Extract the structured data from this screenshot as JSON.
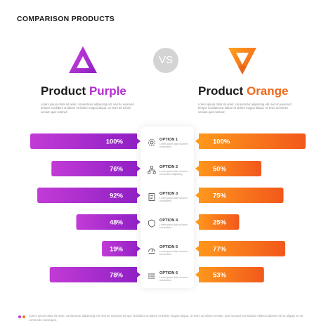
{
  "page_title": "COMPARISON PRODUCTS",
  "vs_label": "VS",
  "products": {
    "left": {
      "name": "Product",
      "accent": "Purple",
      "color_start": "#c23bd6",
      "color_end": "#8e1fc4",
      "description": "Lorem ipsum dolor sit amet, consectetur adipiscing elit, sed do eiusmod tempor incididunt ut labore et dolore magna aliqua. Ut enim ad minim veniam quis nostrud"
    },
    "right": {
      "name": "Product",
      "accent": "Orange",
      "color_start": "#ff9a1c",
      "color_end": "#f2581c",
      "description": "Lorem ipsum dolor sit amet, consectetur adipiscing elit, sed do eiusmod tempor incididunt ut labore et dolore magna aliqua. Ut enim ad minim veniam quis nostrud"
    }
  },
  "options": [
    {
      "label": "OPTION 1",
      "icon": "settings-icon",
      "text": "Lorem ipsum dolor sit amet consectetur"
    },
    {
      "label": "OPTION 2",
      "icon": "network-icon",
      "text": "Lorem ipsum dolor sit amet consectetur adipiscing"
    },
    {
      "label": "OPTION 3",
      "icon": "clipboard-icon",
      "text": "Lorem ipsum dolor sit amet consectetur"
    },
    {
      "label": "OPTION 4",
      "icon": "shield-icon",
      "text": "Lorem ipsum dolor sit amet consectetur"
    },
    {
      "label": "OPTION 5",
      "icon": "dashboard-icon",
      "text": "Lorem ipsum dolor sit amet consectetur"
    },
    {
      "label": "OPTION 6",
      "icon": "list-icon",
      "text": "Lorem ipsum dolor sit amet consectetur"
    }
  ],
  "chart_data": {
    "type": "bar",
    "title": "",
    "categories": [
      "OPTION 1",
      "OPTION 2",
      "OPTION 3",
      "OPTION 4",
      "OPTION 5",
      "OPTION 6"
    ],
    "series": [
      {
        "name": "Product Purple",
        "values": [
          100,
          76,
          92,
          48,
          19,
          78
        ],
        "labels": [
          "100%",
          "76%",
          "92%",
          "48%",
          "19%",
          "78%"
        ],
        "color": "#b52bd1"
      },
      {
        "name": "Product Orange",
        "values": [
          100,
          50,
          75,
          25,
          77,
          53
        ],
        "labels": [
          "100%",
          "50%",
          "75%",
          "25%",
          "77%",
          "53%"
        ],
        "color": "#f5771a"
      }
    ],
    "ylim": [
      0,
      100
    ],
    "orientation": "diverging-horizontal",
    "grid": false,
    "legend": "none"
  },
  "footnote": "Lorem ipsum dolor sit amet, consectetur adipiscing elit, sed do eiusmod tempor incididunt ut labore et dolore magna aliqua. Ut enim ad minim veniam, quis nostrud exercitation ullamco laboris nisi ut aliquip ex ea commodo consequat.",
  "footnote_dot_colors": [
    "#c23bd6",
    "#f5771a"
  ]
}
